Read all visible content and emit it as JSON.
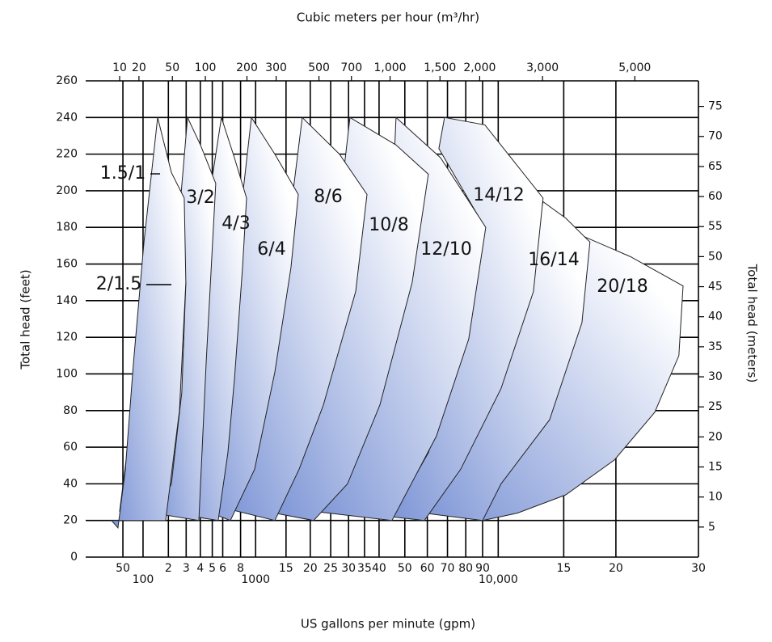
{
  "chart_data": {
    "type": "region",
    "x_label": "US gallons per minute (gpm)",
    "x2_label": "Cubic meters per hour (m³/hr)",
    "y_label": "Total head (feet)",
    "y2_label": "Total head (meters)",
    "xscale": "cbrt",
    "grid": true,
    "xlim": [
      7,
      30000
    ],
    "xticks": [
      50,
      100,
      {
        "value": 200,
        "label": "2"
      },
      {
        "value": 300,
        "label": "3"
      },
      {
        "value": 400,
        "label": "4"
      },
      {
        "value": 500,
        "label": "5"
      },
      {
        "value": 600,
        "label": "6"
      },
      {
        "value": 800,
        "label": "8"
      },
      1000,
      {
        "value": 1500,
        "label": "15"
      },
      {
        "value": 2000,
        "label": "20"
      },
      {
        "value": 2500,
        "label": "25"
      },
      {
        "value": 3000,
        "label": "30"
      },
      {
        "value": 3500,
        "label": "35"
      },
      {
        "value": 4000,
        "label": "40"
      },
      {
        "value": 5000,
        "label": "50"
      },
      {
        "value": 6000,
        "label": "60"
      },
      {
        "value": 7000,
        "label": "70"
      },
      {
        "value": 8000,
        "label": "80"
      },
      {
        "value": 9000,
        "label": "90"
      },
      {
        "value": 10000,
        "label": "10,000"
      },
      {
        "value": 15000,
        "label": "15"
      },
      {
        "value": 20000,
        "label": "20"
      },
      {
        "value": 30000,
        "label": "30"
      }
    ],
    "x2lim": [
      1.6,
      6800
    ],
    "x2ticks": [
      10,
      20,
      50,
      100,
      200,
      300,
      500,
      700,
      {
        "value": 1000,
        "label": "1,000"
      },
      {
        "value": 1500,
        "label": "1,500"
      },
      {
        "value": 2000,
        "label": "2,000"
      },
      {
        "value": 3000,
        "label": "3,000"
      },
      {
        "value": 5000,
        "label": "5,000"
      }
    ],
    "ylim": [
      0,
      260
    ],
    "yticks": [
      0,
      20,
      40,
      60,
      80,
      100,
      120,
      140,
      160,
      180,
      200,
      220,
      240,
      260
    ],
    "y2lim": [
      0,
      79.25
    ],
    "y2ticks": [
      5,
      10,
      15,
      20,
      25,
      30,
      35,
      40,
      45,
      50,
      55,
      60,
      65,
      70,
      75
    ],
    "series": [
      {
        "name": "1.5/1",
        "color": "#7d95d6",
        "x": [
          31,
          41,
          55,
          73,
          103,
          152,
          215,
          288,
          298,
          259,
          187
        ],
        "values": [
          20,
          16,
          48,
          105,
          172,
          240,
          210,
          196,
          150,
          80,
          20
        ]
      },
      {
        "name": "2/1.5",
        "color": "#7d95d6",
        "x": [
          44,
          73,
          103,
          165,
          236,
          298,
          273,
          215,
          136
        ],
        "values": [
          25,
          84,
          150,
          185,
          170,
          150,
          90,
          40,
          20
        ]
      },
      {
        "name": "3/2",
        "color": "#7d95d6",
        "x": [
          136,
          169,
          215,
          273,
          309,
          401,
          532,
          503,
          447,
          389
        ],
        "values": [
          24,
          75,
          136,
          203,
          240,
          225,
          204,
          172,
          106,
          20
        ]
      },
      {
        "name": "4/3",
        "color": "#7d95d6",
        "x": [
          219,
          273,
          353,
          467,
          587,
          727,
          876,
          824,
          727,
          654,
          555
        ],
        "values": [
          24,
          84,
          136,
          194,
          240,
          218,
          196,
          158,
          97,
          57,
          20
        ]
      },
      {
        "name": "6/4",
        "color": "#7d95d6",
        "x": [
          414,
          518,
          637,
          794,
          941,
          1300,
          1741,
          1593,
          1300,
          986,
          681
        ],
        "values": [
          26,
          75,
          128,
          185,
          240,
          220,
          198,
          158,
          101,
          48,
          20
        ]
      },
      {
        "name": "8/6",
        "color": "#7d95d6",
        "x": [
          681,
          930,
          1300,
          1593,
          1825,
          2738,
          3582,
          3216,
          2311,
          1758,
          1300
        ],
        "values": [
          26,
          75,
          132,
          190,
          240,
          220,
          198,
          145,
          83,
          48,
          20
        ]
      },
      {
        "name": "10/8",
        "color": "#7d95d6",
        "x": [
          1300,
          1758,
          2311,
          2738,
          3042,
          4641,
          6048,
          5313,
          4029,
          2969,
          2078
        ],
        "values": [
          24,
          66,
          119,
          190,
          240,
          225,
          209,
          150,
          83,
          40,
          20
        ]
      },
      {
        "name": "12/10",
        "color": "#7d95d6",
        "x": [
          2078,
          2969,
          4029,
          4484,
          4641,
          6645,
          9195,
          8169,
          6437,
          4484
        ],
        "values": [
          25,
          66,
          128,
          190,
          240,
          218,
          180,
          119,
          66,
          20
        ]
      },
      {
        "name": "14/12",
        "color": "#7d95d6",
        "x": [
          4484,
          6048,
          7938,
          9142,
          6560,
          6848,
          9142,
          13278,
          12520,
          10190,
          7715,
          5861
        ],
        "values": [
          22,
          57,
          114,
          180,
          223,
          240,
          236,
          196,
          145,
          92,
          48,
          20
        ]
      },
      {
        "name": "16/14",
        "color": "#7d95d6",
        "x": [
          5861,
          8169,
          11315,
          13278,
          15179,
          17394,
          16641,
          13807,
          10190,
          9000
        ],
        "values": [
          24,
          66,
          128,
          194,
          185,
          172,
          128,
          75,
          40,
          20
        ]
      },
      {
        "name": "20/18",
        "color": "#7d95d6",
        "x": [
          6445,
          9142,
          13807,
          16041,
          21578,
          27928,
          27380,
          24364,
          19837,
          15179,
          11315,
          9000
        ],
        "values": [
          25,
          66,
          128,
          177,
          164,
          148,
          110,
          79,
          53,
          34,
          24,
          20
        ]
      }
    ]
  }
}
